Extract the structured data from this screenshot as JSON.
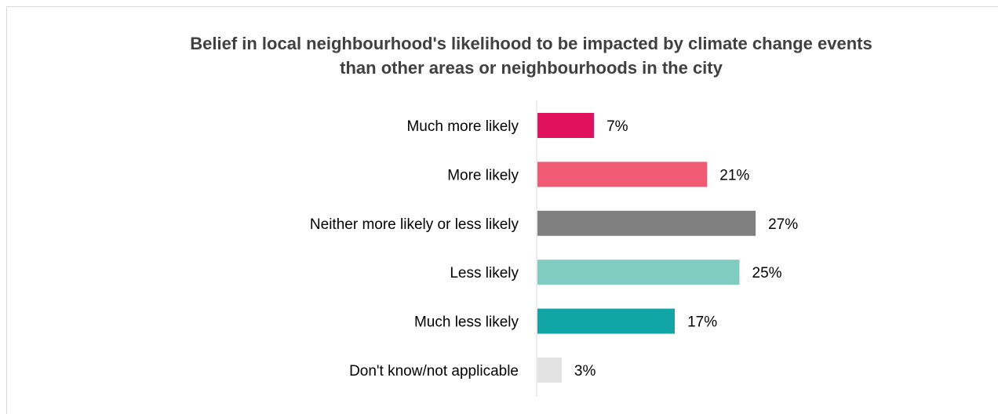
{
  "chart_data": {
    "type": "bar",
    "orientation": "horizontal",
    "title_lines": [
      "Belief in local neighbourhood's likelihood to be impacted by climate change events",
      "than other areas or neighbourhoods in the city"
    ],
    "categories": [
      "Much more likely",
      "More likely",
      "Neither more likely or less likely",
      "Less likely",
      "Much less likely",
      "Don't know/not applicable"
    ],
    "values": [
      7,
      21,
      27,
      25,
      17,
      3
    ],
    "value_labels": [
      "7%",
      "21%",
      "27%",
      "25%",
      "17%",
      "3%"
    ],
    "colors": [
      "#e0115f",
      "#f05a73",
      "#808080",
      "#7fcdc1",
      "#12a5a5",
      "#e3e3e3"
    ],
    "xlim": [
      0,
      100
    ],
    "grid": false,
    "legend": "none"
  }
}
